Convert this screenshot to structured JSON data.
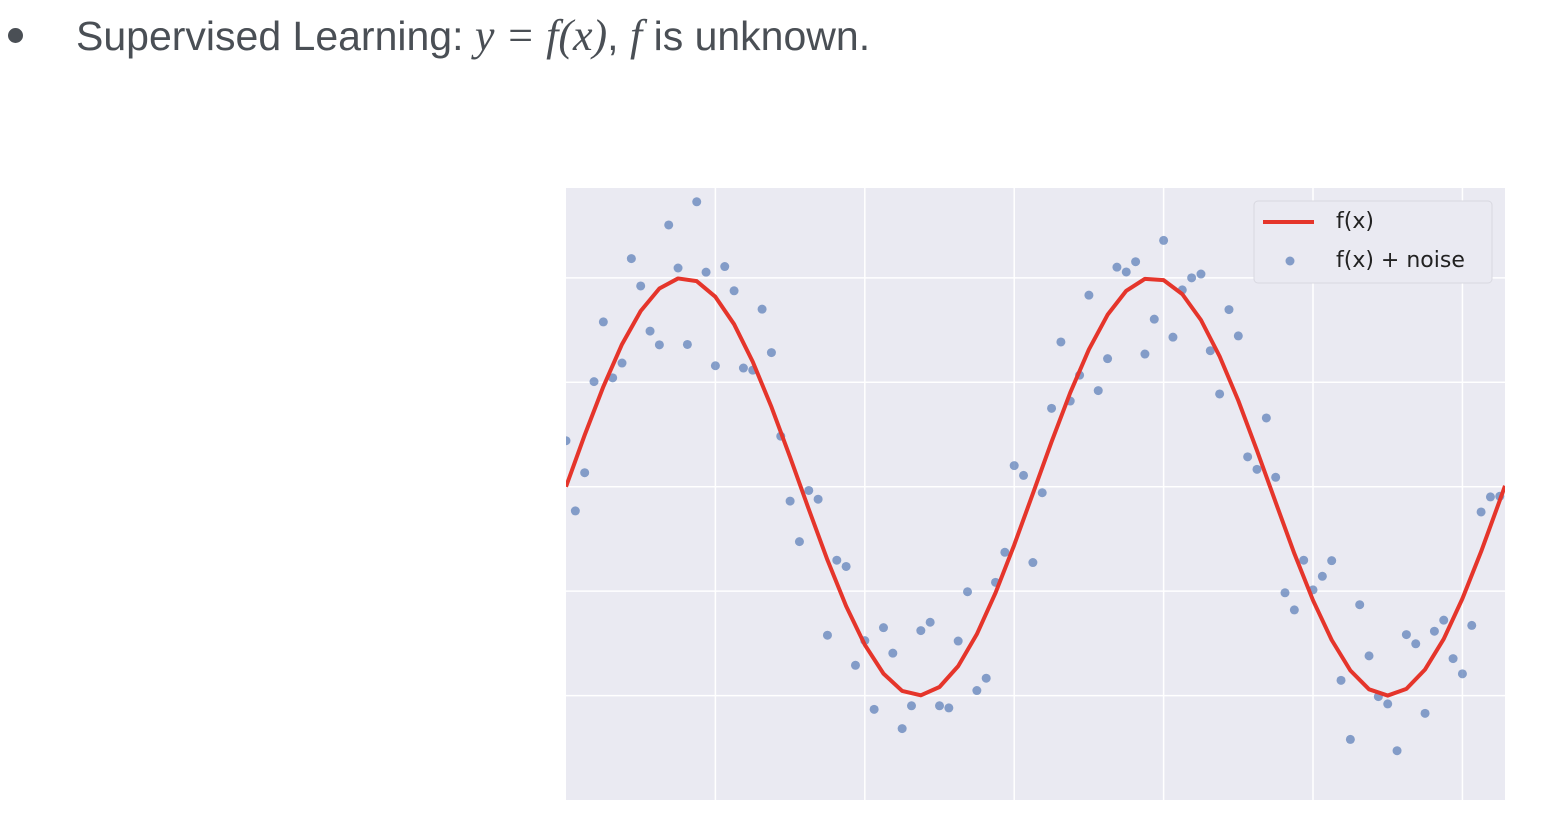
{
  "bullet": {
    "segments": [
      {
        "text": "Supervised Learning: "
      },
      {
        "text": "y = f(x)",
        "math": true
      },
      {
        "text": ", "
      },
      {
        "text": "f",
        "math": true
      },
      {
        "text": " is unknown."
      }
    ]
  },
  "chart_data": {
    "type": "line",
    "xlim": [
      0,
      12.57
    ],
    "ylim": [
      -1.5,
      1.43
    ],
    "xticks": [
      2,
      4,
      6,
      8,
      10,
      12
    ],
    "yticks": [
      -1,
      -0.5,
      0,
      0.5,
      1
    ],
    "grid": true,
    "legend": "upper right",
    "series": [
      {
        "name": "f(x)",
        "type": "line",
        "color": "#e5352b",
        "x": [
          0,
          0.25,
          0.5,
          0.75,
          1,
          1.25,
          1.5,
          1.75,
          2,
          2.25,
          2.5,
          2.75,
          3,
          3.25,
          3.5,
          3.75,
          4,
          4.25,
          4.5,
          4.75,
          5,
          5.25,
          5.5,
          5.75,
          6,
          6.25,
          6.5,
          6.75,
          7,
          7.25,
          7.5,
          7.75,
          8,
          8.25,
          8.5,
          8.75,
          9,
          9.25,
          9.5,
          9.75,
          10,
          10.25,
          10.5,
          10.75,
          11,
          11.25,
          11.5,
          11.75,
          12,
          12.25,
          12.5,
          12.57
        ],
        "values": [
          0,
          0.247,
          0.479,
          0.682,
          0.841,
          0.949,
          0.997,
          0.984,
          0.909,
          0.778,
          0.598,
          0.382,
          0.141,
          -0.108,
          -0.351,
          -0.572,
          -0.757,
          -0.895,
          -0.978,
          -0.999,
          -0.959,
          -0.859,
          -0.706,
          -0.508,
          -0.279,
          -0.033,
          0.215,
          0.45,
          0.657,
          0.823,
          0.938,
          0.995,
          0.989,
          0.922,
          0.798,
          0.624,
          0.412,
          0.173,
          -0.075,
          -0.32,
          -0.544,
          -0.734,
          -0.88,
          -0.97,
          -1,
          -0.968,
          -0.875,
          -0.729,
          -0.536,
          -0.311,
          -0.066,
          0.004
        ]
      },
      {
        "name": "f(x) + noise",
        "type": "scatter",
        "color": "#4c72b0",
        "x": [
          0,
          0.125,
          0.25,
          0.375,
          0.5,
          0.625,
          0.75,
          0.875,
          1,
          1.125,
          1.25,
          1.375,
          1.5,
          1.625,
          1.75,
          1.875,
          2,
          2.125,
          2.25,
          2.375,
          2.5,
          2.625,
          2.75,
          2.875,
          3,
          3.125,
          3.25,
          3.375,
          3.5,
          3.625,
          3.75,
          3.875,
          4,
          4.125,
          4.25,
          4.375,
          4.5,
          4.625,
          4.75,
          4.875,
          5,
          5.125,
          5.25,
          5.375,
          5.5,
          5.625,
          5.75,
          5.875,
          6,
          6.125,
          6.25,
          6.375,
          6.5,
          6.625,
          6.75,
          6.875,
          7,
          7.125,
          7.25,
          7.375,
          7.5,
          7.625,
          7.75,
          7.875,
          8,
          8.125,
          8.25,
          8.375,
          8.5,
          8.625,
          8.75,
          8.875,
          9,
          9.125,
          9.25,
          9.375,
          9.5,
          9.625,
          9.75,
          9.875,
          10,
          10.125,
          10.25,
          10.375,
          10.5,
          10.625,
          10.75,
          10.875,
          11,
          11.125,
          11.25,
          11.375,
          11.5,
          11.625,
          11.75,
          11.875,
          12,
          12.125,
          12.25,
          12.375,
          12.5
        ],
        "values": [
          0.22,
          -0.116,
          0.067,
          0.503,
          0.789,
          0.521,
          0.592,
          1.092,
          0.961,
          0.745,
          0.679,
          1.253,
          1.047,
          0.681,
          1.364,
          1.027,
          0.579,
          1.054,
          0.938,
          0.568,
          0.558,
          0.85,
          0.642,
          0.242,
          -0.069,
          -0.263,
          -0.018,
          -0.06,
          -0.711,
          -0.352,
          -0.382,
          -0.855,
          -0.737,
          -1.066,
          -0.675,
          -0.797,
          -1.158,
          -1.049,
          -0.689,
          -0.649,
          -1.049,
          -1.059,
          -0.739,
          -0.503,
          -0.976,
          -0.917,
          -0.458,
          -0.314,
          0.101,
          0.054,
          -0.363,
          -0.029,
          0.375,
          0.693,
          0.41,
          0.534,
          0.917,
          0.46,
          0.613,
          1.051,
          1.028,
          1.077,
          0.635,
          0.802,
          1.179,
          0.716,
          0.942,
          1.0,
          1.018,
          0.651,
          0.444,
          0.848,
          0.722,
          0.143,
          0.083,
          0.329,
          0.045,
          -0.508,
          -0.59,
          -0.352,
          -0.494,
          -0.429,
          -0.354,
          -0.927,
          -1.21,
          -0.565,
          -0.81,
          -1.005,
          -1.04,
          -1.264,
          -0.708,
          -0.752,
          -1.085,
          -0.692,
          -0.639,
          -0.823,
          -0.896,
          -0.664,
          -0.121,
          -0.049,
          -0.046
        ]
      }
    ]
  }
}
